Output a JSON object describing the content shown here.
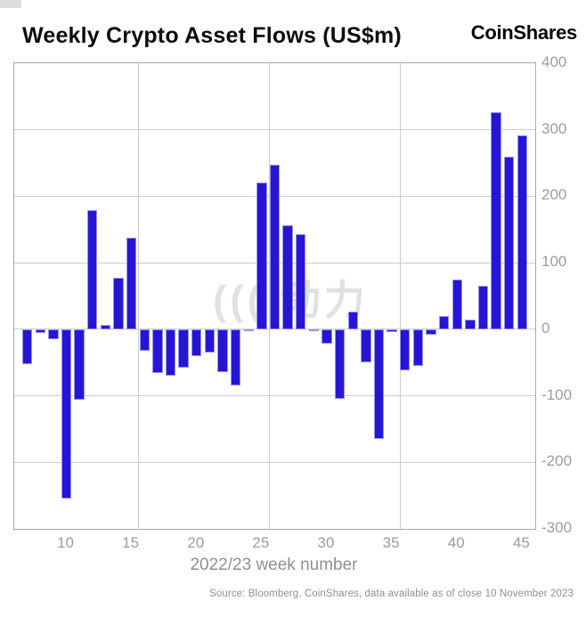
{
  "header": {
    "title": "Weekly Crypto Asset Flows (US$m)",
    "brand": "CoinShares"
  },
  "watermark": "((( 动力",
  "chart_data": {
    "type": "bar",
    "title": "Weekly Crypto Asset Flows (US$m)",
    "xlabel": "2022/23 week number",
    "ylabel": "",
    "x": [
      7,
      8,
      9,
      10,
      11,
      12,
      13,
      14,
      15,
      16,
      17,
      18,
      19,
      20,
      21,
      22,
      23,
      24,
      25,
      26,
      27,
      28,
      29,
      30,
      31,
      32,
      33,
      34,
      35,
      36,
      37,
      38,
      39,
      40,
      41,
      42,
      43,
      44,
      45
    ],
    "values": [
      -52,
      -6,
      -15,
      -255,
      -106,
      179,
      7,
      77,
      137,
      -33,
      -66,
      -70,
      -58,
      -41,
      -35,
      -65,
      -84,
      -3,
      221,
      247,
      157,
      143,
      -3,
      -22,
      -104,
      27,
      -50,
      -165,
      -4,
      -62,
      -55,
      -8,
      20,
      75,
      15,
      66,
      326,
      259,
      291
    ],
    "xlim": [
      6,
      46
    ],
    "ylim": [
      -300,
      400
    ],
    "y_ticks": [
      400,
      300,
      200,
      100,
      0,
      -100,
      -200,
      -300
    ],
    "x_ticks": [
      10,
      15,
      20,
      25,
      30,
      35,
      40,
      45
    ],
    "x_gridlines": [
      15.55,
      25.6,
      35.65
    ],
    "grid": true,
    "legend_position": "none",
    "bar_color": "#2516d6",
    "bar_edge_color": "#9a92ee",
    "axis_label_color": "#9c9c9c"
  },
  "footer": {
    "source": "Source: Bloomberg, CoinShares, data available as of close 10 November 2023"
  }
}
